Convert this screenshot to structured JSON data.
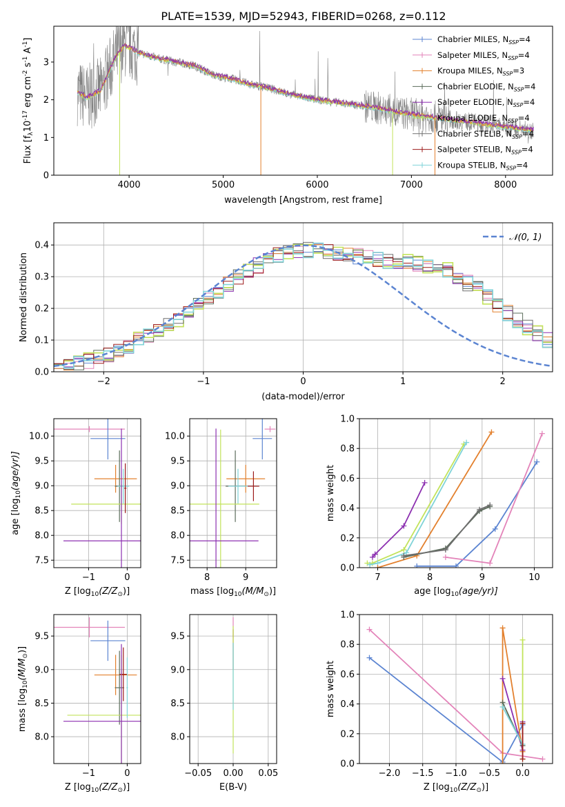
{
  "figure_title": "PLATE=1539, MJD=52943, FIBERID=0268, z=0.112",
  "legend_normal": "𝒩(0, 1)",
  "legend_entries": [
    {
      "main": "Chabrier MILES, N",
      "sub": "SSP",
      "tail": "=4",
      "color": "#5b84d1"
    },
    {
      "main": "Salpeter MILES, N",
      "sub": "SSP",
      "tail": "=4",
      "color": "#e383b9"
    },
    {
      "main": "Kroupa MILES, N",
      "sub": "SSP",
      "tail": "=3",
      "color": "#e3802d"
    },
    {
      "main": "Chabrier ELODIE, N",
      "sub": "SSP",
      "tail": "=4",
      "color": "#5a6b5a"
    },
    {
      "main": "Salpeter ELODIE, N",
      "sub": "SSP",
      "tail": "=4",
      "color": "#8c2fb0"
    },
    {
      "main": "Kroupa ELODIE, N",
      "sub": "SSP",
      "tail": "=4",
      "color": "#c2e35a"
    },
    {
      "main": "Chabrier STELIB, N",
      "sub": "SSP",
      "tail": "=4",
      "color": "#6e6e6e"
    },
    {
      "main": "Salpeter STELIB, N",
      "sub": "SSP",
      "tail": "=4",
      "color": "#9c1a1a"
    },
    {
      "main": "Kroupa STELIB, N",
      "sub": "SSP",
      "tail": "=4",
      "color": "#7fd3d8"
    }
  ],
  "chart_data": [
    {
      "type": "line",
      "id": "spectrum",
      "xlabel": "wavelength [Angstrom, rest frame]",
      "ylabel_main": "Flux [f",
      "ylabel_sub": "λ",
      "ylabel_mid": "10",
      "ylabel_sup1": "-17",
      "ylabel_tail1": " erg cm",
      "ylabel_sup2": "-2",
      "ylabel_tail2": " s",
      "ylabel_sup3": "-1",
      "ylabel_tail3": " A",
      "ylabel_sup4": "-1",
      "ylabel_end": "]",
      "xlim": [
        3200,
        8500
      ],
      "ylim": [
        0,
        3.95
      ],
      "xticks": [
        "4000",
        "5000",
        "6000",
        "7000",
        "8000"
      ],
      "yticks": [
        "0",
        "1",
        "2",
        "3"
      ],
      "xtick_values": [
        4000,
        5000,
        6000,
        7000,
        8000
      ],
      "ytick_values": [
        0,
        1,
        2,
        3
      ],
      "model_continuum": [
        [
          3450,
          2.2
        ],
        [
          3550,
          2.05
        ],
        [
          3700,
          2.25
        ],
        [
          3850,
          3.1
        ],
        [
          3950,
          3.45
        ],
        [
          4100,
          3.25
        ],
        [
          4300,
          3.1
        ],
        [
          4500,
          3.0
        ],
        [
          4700,
          2.9
        ],
        [
          4900,
          2.65
        ],
        [
          5100,
          2.55
        ],
        [
          5300,
          2.4
        ],
        [
          5500,
          2.3
        ],
        [
          5700,
          2.15
        ],
        [
          6000,
          2.0
        ],
        [
          6300,
          1.9
        ],
        [
          6600,
          1.8
        ],
        [
          6900,
          1.65
        ],
        [
          7200,
          1.55
        ],
        [
          7500,
          1.45
        ],
        [
          7800,
          1.35
        ],
        [
          8100,
          1.25
        ],
        [
          8300,
          1.2
        ]
      ]
    },
    {
      "type": "bar",
      "id": "residuals",
      "xlabel": "(data-model)/error",
      "ylabel": "Normed distribution",
      "xlim": [
        -2.5,
        2.5
      ],
      "ylim": [
        0,
        0.47
      ],
      "xticks": [
        "−2",
        "−1",
        "0",
        "1",
        "2"
      ],
      "yticks": [
        "0.0",
        "0.1",
        "0.2",
        "0.3",
        "0.4"
      ],
      "xtick_values": [
        -2,
        -1,
        0,
        1,
        2
      ],
      "ytick_values": [
        0,
        0.1,
        0.2,
        0.3,
        0.4
      ],
      "bin_width": 0.1,
      "base_histogram": [
        0.02,
        0.025,
        0.03,
        0.035,
        0.045,
        0.055,
        0.07,
        0.08,
        0.1,
        0.115,
        0.13,
        0.145,
        0.165,
        0.185,
        0.21,
        0.235,
        0.255,
        0.275,
        0.3,
        0.32,
        0.335,
        0.355,
        0.37,
        0.375,
        0.38,
        0.385,
        0.39,
        0.38,
        0.375,
        0.37,
        0.365,
        0.36,
        0.355,
        0.35,
        0.35,
        0.345,
        0.34,
        0.335,
        0.33,
        0.32,
        0.3,
        0.28,
        0.26,
        0.235,
        0.21,
        0.185,
        0.16,
        0.14,
        0.12,
        0.1,
        0.09,
        0.08,
        0.07,
        0.06,
        0.055,
        0.05,
        0.045,
        0.04,
        0.035,
        0.03
      ]
    },
    {
      "type": "scatter",
      "id": "age_vs_Z",
      "xlabel": "Z [log",
      "xlabel_sub": "10",
      "xlabel_tail": "(Z/Z",
      "xlabel_sub2": "⊙",
      "xlabel_end": ")]",
      "ylabel": "age  [log",
      "ylabel_sub": "10",
      "ylabel_tail": "(age/yr)]",
      "xlim": [
        -1.9,
        0.35
      ],
      "ylim": [
        7.35,
        10.35
      ],
      "xticks": [
        "−1",
        "0"
      ],
      "yticks": [
        "7.5",
        "8.0",
        "8.5",
        "9.0",
        "9.5",
        "10.0"
      ],
      "xtick_values": [
        -1,
        0
      ],
      "ytick_values": [
        7.5,
        8.0,
        8.5,
        9.0,
        9.5,
        10.0
      ],
      "points": [
        {
          "series": 1,
          "x": -0.98,
          "y": 10.14,
          "xerr": 0.92,
          "yerr": 0.06
        },
        {
          "series": 0,
          "x": -0.5,
          "y": 9.95,
          "xerr": 0.45,
          "yerr": 0.42
        },
        {
          "series": 2,
          "x": -0.3,
          "y": 9.14,
          "xerr": 0.55,
          "yerr": 0.28
        },
        {
          "series": 3,
          "x": -0.2,
          "y": 8.99,
          "xerr": 0.12,
          "yerr": 0.72
        },
        {
          "series": 8,
          "x": -0.1,
          "y": 8.99,
          "xerr": 0.15,
          "yerr": 0.35
        },
        {
          "series": 5,
          "x": -0.15,
          "y": 8.63,
          "xerr": 1.3,
          "yerr": 0.4
        },
        {
          "series": 4,
          "x": -0.15,
          "y": 7.89,
          "xerr": 1.5,
          "yerr": 2.26
        },
        {
          "series": 7,
          "x": -0.05,
          "y": 8.95,
          "xerr": 0.03,
          "yerr": 0.5
        }
      ]
    },
    {
      "type": "scatter",
      "id": "age_vs_mass",
      "xlabel": "mass [log",
      "xlabel_sub": "10",
      "xlabel_tail": "(M/M",
      "xlabel_sub2": "⊙",
      "xlabel_end": ")]",
      "xlim": [
        7.55,
        9.8
      ],
      "ylim": [
        7.35,
        10.35
      ],
      "xticks": [
        "8",
        "9"
      ],
      "yticks": [
        "7.5",
        "8.0",
        "8.5",
        "9.0",
        "9.5",
        "10.0"
      ],
      "xtick_values": [
        8,
        9
      ],
      "ytick_values": [
        7.5,
        8.0,
        8.5,
        9.0,
        9.5,
        10.0
      ],
      "points": [
        {
          "series": 1,
          "x": 9.63,
          "y": 10.14,
          "xerr": 0.14,
          "yerr": 0.06
        },
        {
          "series": 0,
          "x": 9.43,
          "y": 9.95,
          "xerr": 0.25,
          "yerr": 0.42
        },
        {
          "series": 2,
          "x": 9.0,
          "y": 9.14,
          "xerr": 0.5,
          "yerr": 0.28
        },
        {
          "series": 3,
          "x": 8.73,
          "y": 8.99,
          "xerr": 0.25,
          "yerr": 0.72
        },
        {
          "series": 8,
          "x": 8.8,
          "y": 8.99,
          "xerr": 0.25,
          "yerr": 0.35
        },
        {
          "series": 5,
          "x": 8.35,
          "y": 8.63,
          "xerr": 1.0,
          "yerr": 1.5
        },
        {
          "series": 4,
          "x": 8.23,
          "y": 7.89,
          "xerr": 1.1,
          "yerr": 2.26
        },
        {
          "series": 7,
          "x": 9.2,
          "y": 8.99,
          "xerr": 0.15,
          "yerr": 0.3
        }
      ]
    },
    {
      "type": "line",
      "id": "weight_vs_age",
      "xlabel": "age  [log",
      "xlabel_sub": "10",
      "xlabel_tail": "(age/yr)]",
      "ylabel": "mass weight",
      "xlim": [
        6.65,
        10.35
      ],
      "ylim": [
        0,
        1.0
      ],
      "xticks": [
        "7",
        "8",
        "9",
        "10"
      ],
      "yticks": [
        "0.0",
        "0.2",
        "0.4",
        "0.6",
        "0.8",
        "1.0"
      ],
      "xtick_values": [
        7,
        8,
        9,
        10
      ],
      "ytick_values": [
        0,
        0.2,
        0.4,
        0.6,
        0.8,
        1.0
      ],
      "series": [
        {
          "series": 4,
          "points": [
            [
              6.9,
              0.07
            ],
            [
              6.95,
              0.09
            ],
            [
              7.5,
              0.28
            ],
            [
              7.9,
              0.57
            ]
          ]
        },
        {
          "series": 5,
          "points": [
            [
              6.8,
              0.03
            ],
            [
              6.9,
              0.03
            ],
            [
              7.5,
              0.12
            ],
            [
              8.65,
              0.83
            ]
          ]
        },
        {
          "series": 8,
          "points": [
            [
              6.85,
              0.02
            ],
            [
              7.0,
              0.03
            ],
            [
              7.55,
              0.1
            ],
            [
              8.7,
              0.84
            ]
          ]
        },
        {
          "series": 2,
          "points": [
            [
              7.0,
              0.0
            ],
            [
              7.75,
              0.08
            ],
            [
              9.18,
              0.91
            ]
          ]
        },
        {
          "series": 3,
          "points": [
            [
              7.5,
              0.07
            ],
            [
              8.3,
              0.13
            ],
            [
              8.95,
              0.38
            ],
            [
              9.15,
              0.41
            ]
          ]
        },
        {
          "series": 6,
          "points": [
            [
              7.5,
              0.08
            ],
            [
              8.3,
              0.12
            ],
            [
              8.95,
              0.39
            ],
            [
              9.15,
              0.42
            ]
          ]
        },
        {
          "series": 0,
          "points": [
            [
              7.75,
              0.01
            ],
            [
              8.5,
              0.01
            ],
            [
              9.25,
              0.26
            ],
            [
              10.05,
              0.71
            ]
          ]
        },
        {
          "series": 1,
          "points": [
            [
              8.3,
              0.07
            ],
            [
              9.15,
              0.03
            ],
            [
              10.15,
              0.9
            ]
          ]
        }
      ]
    },
    {
      "type": "scatter",
      "id": "mass_vs_Z",
      "xlabel": "Z [log",
      "xlabel_sub": "10",
      "xlabel_tail": "(Z/Z",
      "xlabel_sub2": "⊙",
      "xlabel_end": ")]",
      "ylabel": "mass [log",
      "ylabel_sub": "10",
      "ylabel_tail": "(M/M",
      "ylabel_sub2": "⊙",
      "ylabel_end": ")]",
      "xlim": [
        -1.9,
        0.35
      ],
      "ylim": [
        7.6,
        9.82
      ],
      "xticks": [
        "−1",
        "0"
      ],
      "yticks": [
        "8.0",
        "8.5",
        "9.0",
        "9.5"
      ],
      "xtick_values": [
        -1,
        0
      ],
      "ytick_values": [
        8.0,
        8.5,
        9.0,
        9.5
      ],
      "points": [
        {
          "series": 1,
          "x": -0.98,
          "y": 9.63,
          "xerr": 0.92,
          "yerr": 0.15
        },
        {
          "series": 0,
          "x": -0.5,
          "y": 9.43,
          "xerr": 0.45,
          "yerr": 0.3
        },
        {
          "series": 2,
          "x": -0.3,
          "y": 8.92,
          "xerr": 0.55,
          "yerr": 0.3
        },
        {
          "series": 3,
          "x": -0.2,
          "y": 8.73,
          "xerr": 0.12,
          "yerr": 0.55
        },
        {
          "series": 7,
          "x": -0.1,
          "y": 8.93,
          "xerr": 0.1,
          "yerr": 0.4
        },
        {
          "series": 5,
          "x": -0.15,
          "y": 8.32,
          "xerr": 1.4,
          "yerr": 0.9
        },
        {
          "series": 4,
          "x": -0.15,
          "y": 8.23,
          "xerr": 1.5,
          "yerr": 1.15
        },
        {
          "series": 8,
          "x": 0.0,
          "y": 8.73,
          "xerr": 0.02,
          "yerr": 0.45
        }
      ]
    },
    {
      "type": "scatter",
      "id": "mass_vs_EBV",
      "xlabel": "E(B-V)",
      "xlim": [
        -0.062,
        0.062
      ],
      "ylim": [
        7.6,
        9.82
      ],
      "xticks": [
        "−0.05",
        "0.00",
        "0.05"
      ],
      "yticks": [
        "8.0",
        "8.5",
        "9.0",
        "9.5"
      ],
      "xtick_values": [
        -0.05,
        0,
        0.05
      ],
      "ytick_values": [
        8.0,
        8.5,
        9.0,
        9.5
      ],
      "points": [
        {
          "series": 1,
          "x": 0.0,
          "y": 9.63,
          "xerr": 0.0,
          "yerr": 0.15
        },
        {
          "series": 7,
          "x": 0.0,
          "y": 9.3,
          "xerr": 0.0,
          "yerr": 0.3
        },
        {
          "series": 5,
          "x": 0.0,
          "y": 8.7,
          "xerr": 0.0,
          "yerr": 0.95
        },
        {
          "series": 8,
          "x": 0.0,
          "y": 8.9,
          "xerr": 0.0,
          "yerr": 0.5
        }
      ]
    },
    {
      "type": "line",
      "id": "weight_vs_Z",
      "xlabel": "Z [log",
      "xlabel_sub": "10",
      "xlabel_tail": "(Z/Z",
      "xlabel_sub2": "⊙",
      "xlabel_end": ")]",
      "ylabel": "mass weight",
      "xlim": [
        -2.45,
        0.45
      ],
      "ylim": [
        0,
        1.0
      ],
      "xticks": [
        "−2.0",
        "−1.5",
        "−1.0",
        "−0.5",
        "0.0"
      ],
      "yticks": [
        "0.0",
        "0.2",
        "0.4",
        "0.6",
        "0.8",
        "1.0"
      ],
      "xtick_values": [
        -2.0,
        -1.5,
        -1.0,
        -0.5,
        0.0
      ],
      "ytick_values": [
        0,
        0.2,
        0.4,
        0.6,
        0.8,
        1.0
      ],
      "series": [
        {
          "series": 0,
          "points": [
            [
              -2.3,
              0.71
            ],
            [
              -0.3,
              0.01
            ],
            [
              0.0,
              0.26
            ]
          ]
        },
        {
          "series": 1,
          "points": [
            [
              -2.3,
              0.9
            ],
            [
              -0.3,
              0.07
            ],
            [
              0.3,
              0.03
            ]
          ]
        },
        {
          "series": 2,
          "points": [
            [
              -0.3,
              0.0
            ],
            [
              -0.3,
              0.91
            ],
            [
              0.0,
              0.08
            ]
          ]
        },
        {
          "series": 4,
          "points": [
            [
              -0.3,
              0.57
            ],
            [
              0.0,
              0.09
            ],
            [
              0.0,
              0.28
            ]
          ]
        },
        {
          "series": 3,
          "points": [
            [
              -0.3,
              0.41
            ],
            [
              0.0,
              0.12
            ]
          ]
        },
        {
          "series": 8,
          "points": [
            [
              -0.3,
              0.38
            ],
            [
              0.0,
              0.13
            ]
          ]
        },
        {
          "series": 5,
          "points": [
            [
              0.0,
              0.03
            ],
            [
              0.0,
              0.83
            ]
          ]
        },
        {
          "series": 7,
          "points": [
            [
              0.0,
              0.27
            ],
            [
              0.0,
              0.03
            ]
          ]
        }
      ]
    }
  ]
}
